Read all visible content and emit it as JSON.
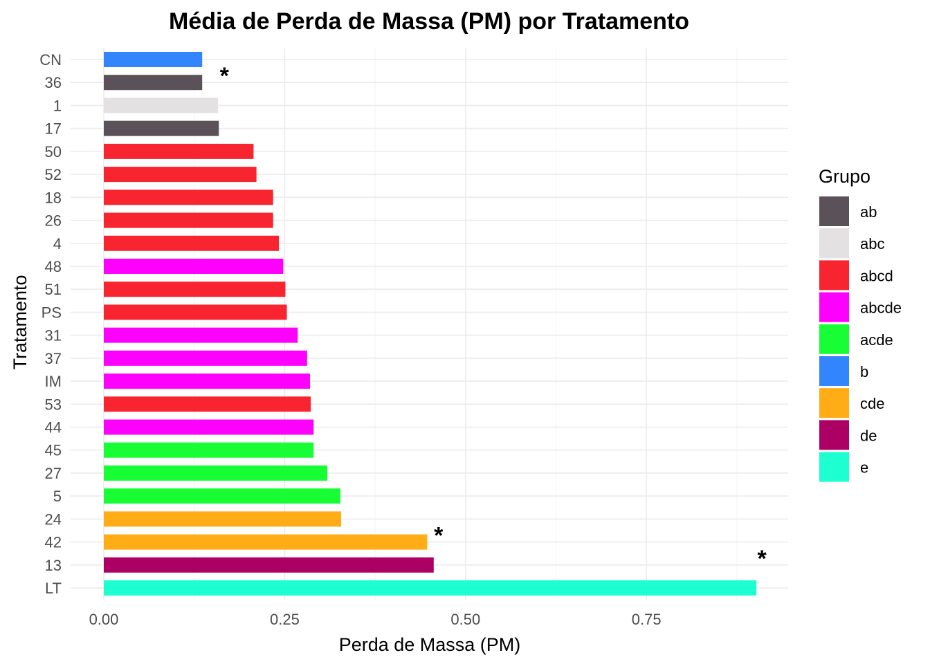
{
  "chart_data": {
    "type": "bar",
    "orientation": "horizontal",
    "title": "Média de Perda de Massa (PM) por Tratamento",
    "xlabel": "Perda de Massa (PM)",
    "ylabel": "Tratamento",
    "xlim": [
      0,
      0.9
    ],
    "xticks": [
      "0.00",
      "0.25",
      "0.50",
      "0.75"
    ],
    "grid": true,
    "legend": {
      "title": "Grupo",
      "placement": "right",
      "items": [
        {
          "label": "ab",
          "color": "#5a5258"
        },
        {
          "label": "abc",
          "color": "#e3e1e2"
        },
        {
          "label": "abcd",
          "color": "#f8242f"
        },
        {
          "label": "abcde",
          "color": "#fe00fe"
        },
        {
          "label": "acde",
          "color": "#18fe34"
        },
        {
          "label": "b",
          "color": "#3385fe"
        },
        {
          "label": "cde",
          "color": "#ffac16"
        },
        {
          "label": "de",
          "color": "#ad0065"
        },
        {
          "label": "e",
          "color": "#1dffd0"
        }
      ]
    },
    "categories": [
      "CN",
      "36",
      "1",
      "17",
      "50",
      "52",
      "18",
      "26",
      "4",
      "48",
      "51",
      "PS",
      "31",
      "37",
      "IM",
      "53",
      "44",
      "45",
      "27",
      "5",
      "24",
      "42",
      "13",
      "LT"
    ],
    "values": [
      0.136,
      0.136,
      0.158,
      0.159,
      0.207,
      0.211,
      0.234,
      0.234,
      0.242,
      0.248,
      0.251,
      0.253,
      0.268,
      0.281,
      0.285,
      0.286,
      0.29,
      0.29,
      0.309,
      0.327,
      0.328,
      0.447,
      0.456,
      0.902
    ],
    "groups": [
      "b",
      "ab",
      "abc",
      "ab",
      "abcd",
      "abcd",
      "abcd",
      "abcd",
      "abcd",
      "abcde",
      "abcd",
      "abcd",
      "abcde",
      "abcde",
      "abcde",
      "abcd",
      "abcde",
      "acde",
      "acde",
      "acde",
      "cde",
      "cde",
      "de",
      "e"
    ],
    "annotations": [
      {
        "text": "*",
        "category": "36",
        "x": 0.159
      },
      {
        "text": "*",
        "category": "42",
        "x": 0.455
      },
      {
        "text": "*",
        "category": "13",
        "x": 0.902
      }
    ]
  }
}
